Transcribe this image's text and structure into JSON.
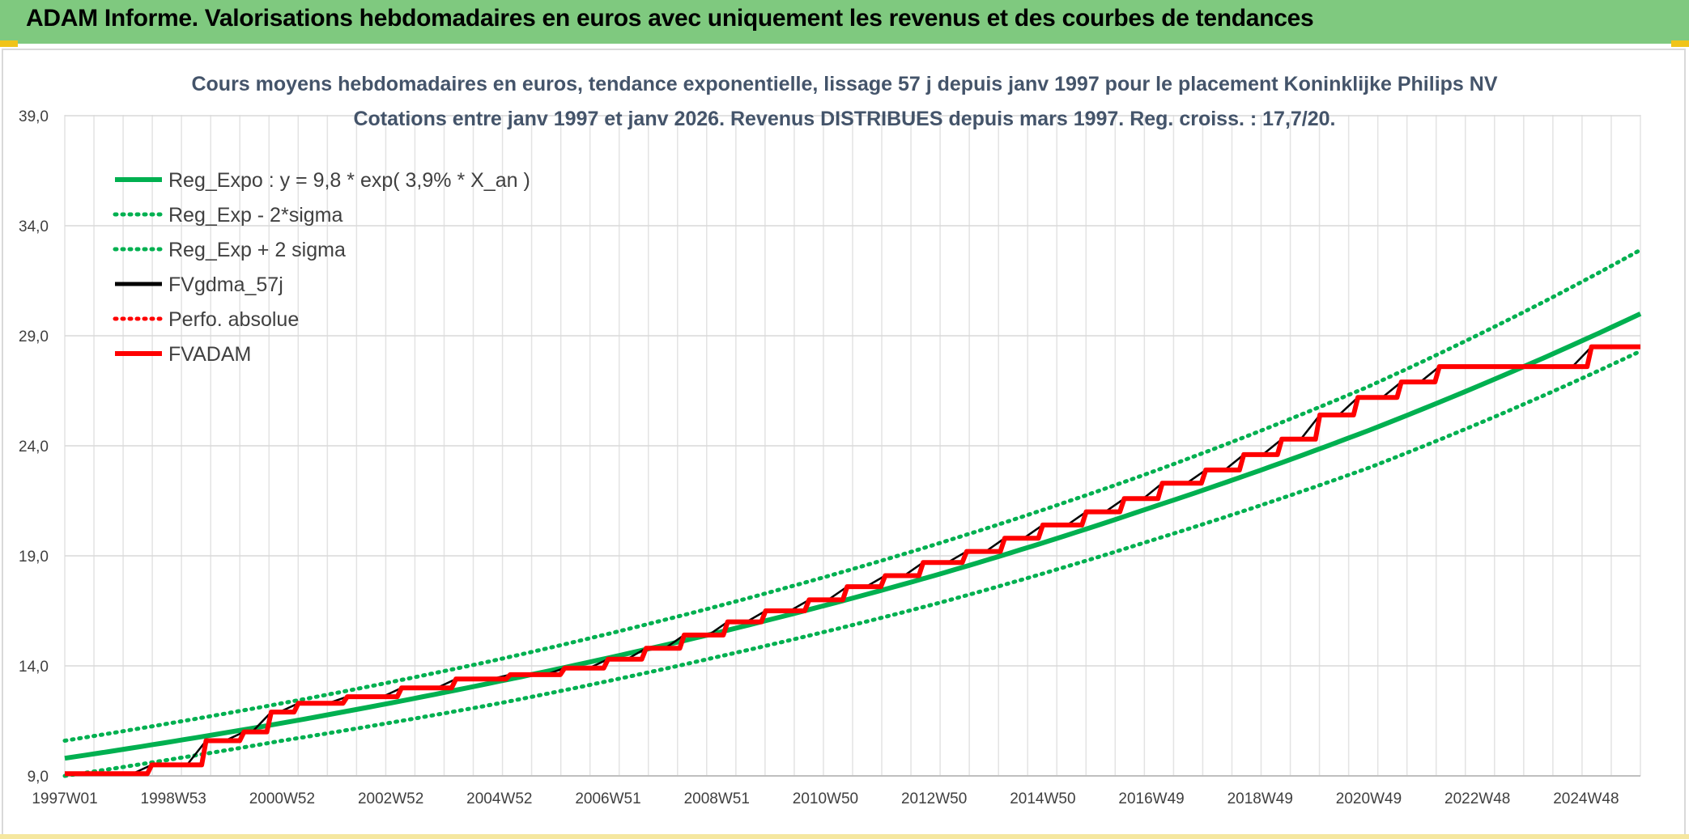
{
  "header": {
    "title": "ADAM Informe. Valorisations hebdomadaires en euros avec uniquement les revenus et des courbes de tendances"
  },
  "colors": {
    "header_bg": "#7fc97f",
    "reg_expo": "#00b050",
    "fvgdma": "#000000",
    "fvadam": "#ff0000"
  },
  "chart_data": {
    "type": "line",
    "title_line1": "Cours moyens hebdomadaires en euros, tendance exponentielle, lissage 57 j depuis janv 1997 pour le placement Koninklijke Philips NV",
    "title_line2": "Cotations entre janv 1997 et janv 2026. Revenus DISTRIBUES depuis mars 1997. Reg. croiss. : 17,7/20.",
    "x_tick_labels": [
      "1997W01",
      "1998W53",
      "2000W52",
      "2002W52",
      "2004W52",
      "2006W51",
      "2008W51",
      "2010W50",
      "2012W50",
      "2014W50",
      "2016W49",
      "2018W49",
      "2020W49",
      "2022W48",
      "2024W48"
    ],
    "y_tick_labels": [
      "9,0",
      "14,0",
      "19,0",
      "24,0",
      "29,0",
      "34,0",
      "39,0"
    ],
    "ylim": [
      9,
      40
    ],
    "xlim_years": [
      1997,
      2026
    ],
    "legend_position": "top-left",
    "grid": true,
    "series": [
      {
        "name": "Reg_Expo : y = 9,8 * exp( 3,9% *  X_an )",
        "style": "solid-thick",
        "color": "#00b050",
        "x": [
          1997,
          2001,
          2005,
          2009,
          2013,
          2017,
          2021,
          2026
        ],
        "y": [
          9.8,
          11.4,
          13.3,
          15.5,
          18.1,
          21.2,
          24.7,
          30.0
        ]
      },
      {
        "name": "Reg_Exp - 2*sigma",
        "style": "dotted",
        "color": "#00b050",
        "x": [
          1997,
          2001,
          2005,
          2009,
          2013,
          2017,
          2021,
          2026
        ],
        "y": [
          9.0,
          10.6,
          12.3,
          14.4,
          16.8,
          19.7,
          23.0,
          28.3
        ]
      },
      {
        "name": "Reg_Exp + 2 sigma",
        "style": "dotted",
        "color": "#00b050",
        "x": [
          1997,
          2001,
          2005,
          2009,
          2013,
          2017,
          2021,
          2026
        ],
        "y": [
          10.6,
          12.3,
          14.3,
          16.7,
          19.5,
          22.8,
          26.7,
          32.9
        ]
      },
      {
        "name": "FVgdma_57j",
        "style": "solid",
        "color": "#000000",
        "x": [
          1997.0,
          1998.3,
          1998.6,
          1999.2,
          1999.6,
          2000.3,
          2000.8,
          2001.3,
          2002.2,
          2003.2,
          2004.2,
          2005.2,
          2006.2,
          2007.0,
          2007.7,
          2008.4,
          2009.2,
          2009.9,
          2010.7,
          2011.4,
          2012.1,
          2012.8,
          2013.6,
          2014.3,
          2015.0,
          2015.8,
          2016.5,
          2017.2,
          2018.0,
          2018.7,
          2019.4,
          2020.1,
          2020.8,
          2021.6,
          2022.3,
          2023.0,
          2025.1,
          2026.0
        ],
        "y": [
          9.1,
          9.1,
          9.5,
          9.5,
          10.6,
          11.0,
          11.9,
          12.3,
          12.6,
          13.0,
          13.4,
          13.6,
          13.9,
          14.3,
          14.8,
          15.4,
          16.0,
          16.5,
          17.0,
          17.6,
          18.1,
          18.7,
          19.2,
          19.8,
          20.4,
          21.0,
          21.6,
          22.3,
          22.9,
          23.6,
          24.3,
          25.4,
          26.2,
          26.9,
          27.6,
          27.6,
          28.5,
          28.5
        ]
      },
      {
        "name": "Perfo. absolue",
        "style": "dotted",
        "color": "#ff0000",
        "x": [],
        "y": []
      },
      {
        "name": "FVADAM",
        "style": "step-thick",
        "color": "#ff0000",
        "x": [
          1997.0,
          1998.3,
          1998.6,
          1999.2,
          1999.6,
          2000.3,
          2000.8,
          2001.3,
          2002.2,
          2003.2,
          2004.2,
          2005.2,
          2006.2,
          2007.0,
          2007.7,
          2008.4,
          2009.2,
          2009.9,
          2010.7,
          2011.4,
          2012.1,
          2012.8,
          2013.6,
          2014.3,
          2015.0,
          2015.8,
          2016.5,
          2017.2,
          2018.0,
          2018.7,
          2019.4,
          2020.1,
          2020.8,
          2021.6,
          2022.3,
          2023.0,
          2025.1,
          2026.0
        ],
        "y": [
          9.1,
          9.1,
          9.5,
          9.5,
          10.6,
          11.0,
          11.9,
          12.3,
          12.6,
          13.0,
          13.4,
          13.6,
          13.9,
          14.3,
          14.8,
          15.4,
          16.0,
          16.5,
          17.0,
          17.6,
          18.1,
          18.7,
          19.2,
          19.8,
          20.4,
          21.0,
          21.6,
          22.3,
          22.9,
          23.6,
          24.3,
          25.4,
          26.2,
          26.9,
          27.6,
          27.6,
          28.5,
          28.5
        ]
      }
    ]
  }
}
